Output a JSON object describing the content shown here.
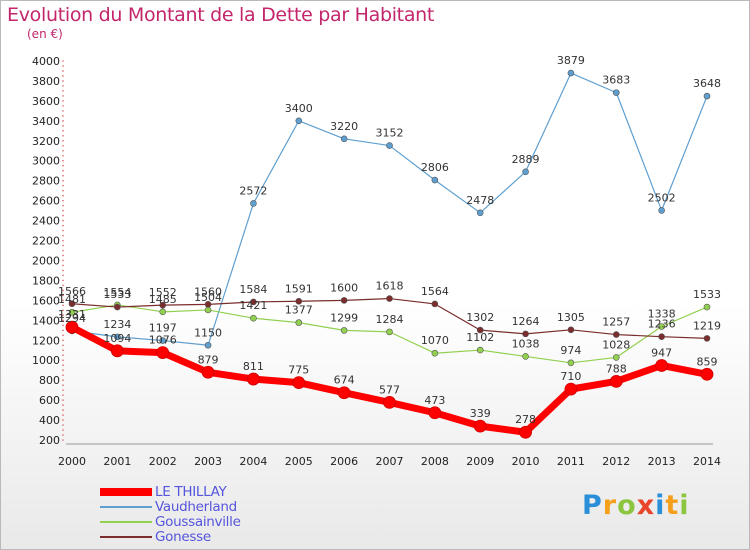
{
  "header": {
    "title": "Evolution du Montant de la Dette par Habitant",
    "unit": "(en €)"
  },
  "logo": {
    "text": "Proxiti",
    "colors": [
      "#2a8fd8",
      "#f4a01c",
      "#8cc63f",
      "#e8452c",
      "#2a8fd8",
      "#f4a01c",
      "#8cc63f"
    ]
  },
  "chart_data": {
    "type": "line",
    "title": "Evolution du Montant de la Dette par Habitant",
    "subtitle": "(en €)",
    "xlabel": "",
    "ylabel": "",
    "x": [
      2000,
      2001,
      2002,
      2003,
      2004,
      2005,
      2006,
      2007,
      2008,
      2009,
      2010,
      2011,
      2012,
      2013,
      2014
    ],
    "ylim": [
      200,
      4000
    ],
    "yticks": [
      200,
      400,
      600,
      800,
      1000,
      1200,
      1400,
      1600,
      1800,
      2000,
      2200,
      2400,
      2600,
      2800,
      3000,
      3200,
      3400,
      3600,
      3800,
      4000
    ],
    "grid": false,
    "legend_position": "bottom-left",
    "series": [
      {
        "name": "LE THILLAY",
        "color": "#ff0000",
        "values": [
          1331,
          1094,
          1076,
          879,
          811,
          775,
          674,
          577,
          473,
          339,
          278,
          710,
          788,
          947,
          859
        ]
      },
      {
        "name": "Vaudherland",
        "color": "#5e9fd0",
        "values": [
          1294,
          1234,
          1197,
          1150,
          2572,
          3400,
          3220,
          3152,
          2806,
          2478,
          2889,
          3879,
          3683,
          2502,
          3648
        ]
      },
      {
        "name": "Goussainville",
        "color": "#92d050",
        "values": [
          1481,
          1554,
          1485,
          1504,
          1421,
          1377,
          1299,
          1284,
          1070,
          1102,
          1038,
          974,
          1028,
          1338,
          1533
        ]
      },
      {
        "name": "Gonesse",
        "color": "#7b2c2c",
        "values": [
          1566,
          1533,
          1552,
          1560,
          1584,
          1591,
          1600,
          1618,
          1564,
          1302,
          1264,
          1305,
          1257,
          1236,
          1219
        ]
      }
    ]
  }
}
